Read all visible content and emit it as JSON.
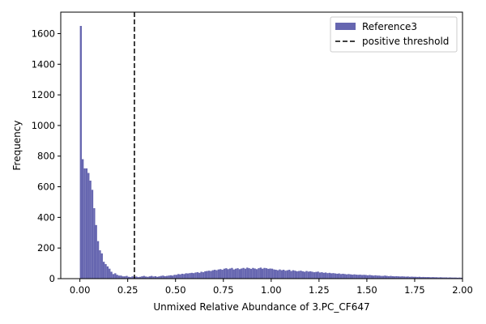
{
  "chart_data": {
    "type": "bar",
    "xlabel": "Unmixed Relative Abundance of 3.PC_CF647",
    "ylabel": "Frequency",
    "xlim": [
      -0.1,
      2.0
    ],
    "ylim": [
      0,
      1740
    ],
    "x_ticks": [
      "0.00",
      "0.25",
      "0.50",
      "0.75",
      "1.00",
      "1.25",
      "1.50",
      "1.75",
      "2.00"
    ],
    "y_ticks": [
      "0",
      "200",
      "400",
      "600",
      "800",
      "1000",
      "1200",
      "1400",
      "1600"
    ],
    "legend_position": "top-right",
    "bin_width": 0.01,
    "bin_start": 0.0,
    "series": [
      {
        "name": "Reference3",
        "color": "#6666b0",
        "values": [
          1650,
          780,
          720,
          720,
          690,
          640,
          580,
          460,
          350,
          245,
          185,
          165,
          110,
          95,
          80,
          65,
          45,
          30,
          35,
          25,
          20,
          20,
          15,
          15,
          18,
          12,
          10,
          15,
          12,
          14,
          10,
          12,
          15,
          18,
          14,
          12,
          15,
          18,
          14,
          16,
          12,
          15,
          18,
          20,
          16,
          18,
          20,
          22,
          20,
          25,
          25,
          30,
          28,
          32,
          30,
          35,
          34,
          36,
          38,
          36,
          40,
          42,
          38,
          45,
          42,
          48,
          50,
          52,
          50,
          55,
          58,
          55,
          60,
          62,
          58,
          65,
          68,
          62,
          66,
          70,
          60,
          65,
          68,
          62,
          66,
          70,
          65,
          72,
          68,
          64,
          70,
          66,
          62,
          68,
          72,
          65,
          70,
          68,
          64,
          66,
          65,
          60,
          58,
          55,
          60,
          55,
          58,
          52,
          55,
          58,
          50,
          55,
          52,
          48,
          50,
          52,
          48,
          45,
          50,
          46,
          48,
          45,
          42,
          44,
          46,
          40,
          42,
          38,
          40,
          36,
          38,
          35,
          36,
          34,
          32,
          34,
          30,
          32,
          30,
          28,
          30,
          28,
          26,
          28,
          26,
          25,
          26,
          24,
          25,
          24,
          22,
          24,
          22,
          20,
          22,
          20,
          20,
          18,
          18,
          20,
          18,
          16,
          18,
          16,
          15,
          16,
          15,
          14,
          15,
          14,
          13,
          14,
          12,
          13,
          12,
          12,
          11,
          12,
          10,
          11,
          10,
          10,
          10,
          9,
          10,
          9,
          9,
          8,
          9,
          8,
          8,
          8,
          7,
          8,
          7,
          7,
          7,
          6,
          7,
          6
        ]
      }
    ],
    "threshold": {
      "name": "positive threshold",
      "x": 0.285,
      "color": "#000000",
      "style": "dashed"
    }
  }
}
